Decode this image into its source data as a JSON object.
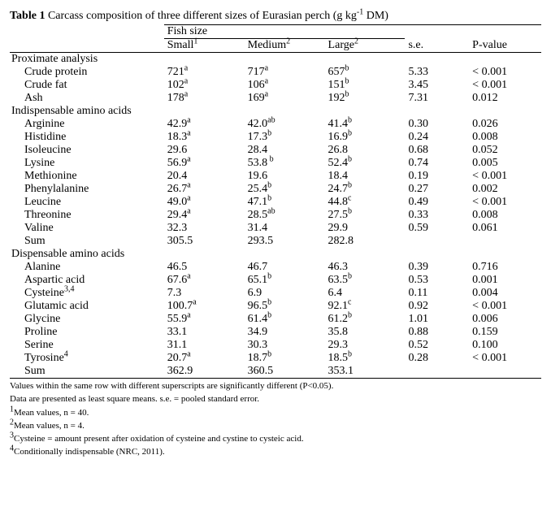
{
  "title_prefix": "Table 1",
  "title_rest": " Carcass composition of three different sizes of Eurasian perch (g kg",
  "title_sup": "-1",
  "title_end": " DM)",
  "header_group": "Fish size",
  "col_small": "Small",
  "col_small_sup": "1",
  "col_medium": "Medium",
  "col_medium_sup": "2",
  "col_large": "Large",
  "col_large_sup": "2",
  "col_se": "s.e.",
  "col_p": "P-value",
  "sec1": "Proximate analysis",
  "r1": {
    "l": "Crude protein",
    "s": "721",
    "ss": "a",
    "m": "717",
    "ms": "a",
    "g": "657",
    "gs": "b",
    "se": "5.33",
    "p": "< 0.001"
  },
  "r2": {
    "l": "Crude fat",
    "s": "102",
    "ss": "a",
    "m": "106",
    "ms": "a",
    "g": "151",
    "gs": "b",
    "se": "3.45",
    "p": "< 0.001"
  },
  "r3": {
    "l": "Ash",
    "s": "178",
    "ss": "a",
    "m": "169",
    "ms": "a",
    "g": "192",
    "gs": "b",
    "se": "7.31",
    "p": "0.012"
  },
  "sec2": "Indispensable amino acids",
  "r4": {
    "l": "Arginine",
    "s": "42.9",
    "ss": "a",
    "m": "42.0",
    "ms": "ab",
    "g": "41.4",
    "gs": "b",
    "se": "0.30",
    "p": "0.026"
  },
  "r5": {
    "l": "Histidine",
    "s": "18.3",
    "ss": "a",
    "m": "17.3",
    "ms": "b",
    "g": "16.9",
    "gs": "b",
    "se": "0.24",
    "p": "0.008"
  },
  "r6": {
    "l": "Isoleucine",
    "s": "29.6",
    "ss": "",
    "m": "28.4",
    "ms": "",
    "g": "26.8",
    "gs": "",
    "se": "0.68",
    "p": "0.052"
  },
  "r7": {
    "l": "Lysine",
    "s": "56.9",
    "ss": "a",
    "m": "53.8",
    "ms": " b",
    "g": "52.4",
    "gs": "b",
    "se": "0.74",
    "p": "0.005"
  },
  "r8": {
    "l": "Methionine",
    "s": "20.4",
    "ss": "",
    "m": "19.6",
    "ms": "",
    "g": "18.4",
    "gs": "",
    "se": "0.19",
    "p": "< 0.001"
  },
  "r9": {
    "l": "Phenylalanine",
    "s": "26.7",
    "ss": "a",
    "m": "25.4",
    "ms": "b",
    "g": "24.7",
    "gs": "b",
    "se": "0.27",
    "p": "0.002"
  },
  "r10": {
    "l": "Leucine",
    "s": "49.0",
    "ss": "a",
    "m": "47.1",
    "ms": "b",
    "g": "44.8",
    "gs": "c",
    "se": "0.49",
    "p": "< 0.001"
  },
  "r11": {
    "l": "Threonine",
    "s": "29.4",
    "ss": "a",
    "m": "28.5",
    "ms": "ab",
    "g": "27.5",
    "gs": "b",
    "se": "0.33",
    "p": "0.008"
  },
  "r12": {
    "l": "Valine",
    "s": "32.3",
    "ss": "",
    "m": "31.4",
    "ms": "",
    "g": "29.9",
    "gs": "",
    "se": "0.59",
    "p": "0.061"
  },
  "r13": {
    "l": "Sum",
    "s": "305.5",
    "ss": "",
    "m": "293.5",
    "ms": "",
    "g": "282.8",
    "gs": "",
    "se": "",
    "p": ""
  },
  "sec3": "Dispensable amino acids",
  "r14": {
    "l": "Alanine",
    "s": "46.5",
    "ss": "",
    "m": "46.7",
    "ms": "",
    "g": "46.3",
    "gs": "",
    "se": "0.39",
    "p": "0.716"
  },
  "r15": {
    "l": "Aspartic acid",
    "s": "67.6",
    "ss": "a",
    "m": "65.1",
    "ms": "b",
    "g": "63.5",
    "gs": "b",
    "se": "0.53",
    "p": "0.001"
  },
  "r16": {
    "l": "Cysteine",
    "lsup": "3,4",
    "s": "7.3",
    "ss": "",
    "m": "6.9",
    "ms": "",
    "g": "6.4",
    "gs": "",
    "se": "0.11",
    "p": "0.004"
  },
  "r17": {
    "l": "Glutamic acid",
    "s": "100.7",
    "ss": "a",
    "m": "96.5",
    "ms": "b",
    "g": "92.1",
    "gs": "c",
    "se": "0.92",
    "p": "< 0.001"
  },
  "r18": {
    "l": "Glycine",
    "s": "55.9",
    "ss": "a",
    "m": "61.4",
    "ms": "b",
    "g": "61.2",
    "gs": "b",
    "se": "1.01",
    "p": "0.006"
  },
  "r19": {
    "l": "Proline",
    "s": "33.1",
    "ss": "",
    "m": "34.9",
    "ms": "",
    "g": "35.8",
    "gs": "",
    "se": "0.88",
    "p": "0.159"
  },
  "r20": {
    "l": "Serine",
    "s": "31.1",
    "ss": "",
    "m": "30.3",
    "ms": "",
    "g": "29.3",
    "gs": "",
    "se": "0.52",
    "p": "0.100"
  },
  "r21": {
    "l": "Tyrosine",
    "lsup": "4",
    "s": "20.7",
    "ss": "a",
    "m": "18.7",
    "ms": "b",
    "g": "18.5",
    "gs": "b",
    "se": "0.28",
    "p": "< 0.001"
  },
  "r22": {
    "l": "Sum",
    "s": "362.9",
    "ss": "",
    "m": "360.5",
    "ms": "",
    "g": "353.1",
    "gs": "",
    "se": "",
    "p": ""
  },
  "fn1": "Values within the same row with different superscripts are significantly different (P<0.05).",
  "fn2": "Data are presented as least square means. s.e. = pooled standard error.",
  "fn3_sup": "1",
  "fn3": "Mean values, n = 40.",
  "fn4_sup": "2",
  "fn4": "Mean values, n = 4.",
  "fn5_sup": "3",
  "fn5": "Cysteine = amount present after oxidation of cysteine and cystine to cysteic acid.",
  "fn6_sup": "4",
  "fn6": "Conditionally indispensable (NRC, 2011)."
}
